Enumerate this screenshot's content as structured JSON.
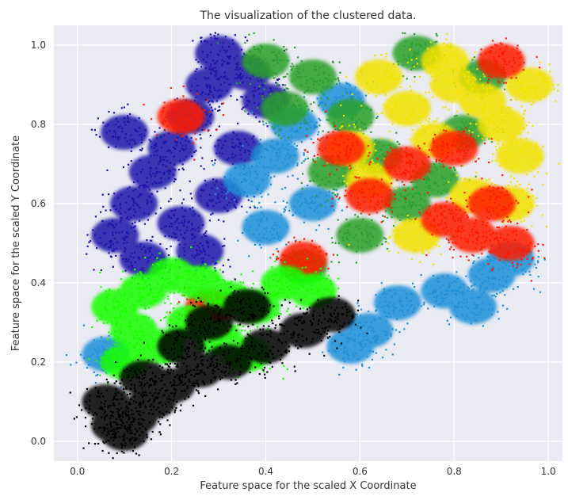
{
  "chart_data": {
    "type": "scatter",
    "title": "The visualization of the clustered data.",
    "xlabel": "Feature space for the scaled X Coordinate",
    "ylabel": "Feature space for the scaled Y Coordinate",
    "xlim": [
      -0.05,
      1.03
    ],
    "ylim": [
      -0.05,
      1.05
    ],
    "xticks": [
      "0.0",
      "0.2",
      "0.4",
      "0.6",
      "0.8",
      "1.0"
    ],
    "yticks": [
      "0.0",
      "0.2",
      "0.4",
      "0.6",
      "0.8",
      "1.0"
    ],
    "grid": true,
    "legend": "none",
    "colors": {
      "background": "#eaeaf2",
      "grid": "#ffffff",
      "clusters": [
        "#1f14a8",
        "#1e90d8",
        "#2ca02c",
        "#f2e200",
        "#ff1a00",
        "#19ff00",
        "#000000"
      ]
    },
    "series": [
      {
        "color": "#1f14a8",
        "points": [
          [
            0.08,
            0.52
          ],
          [
            0.12,
            0.6
          ],
          [
            0.16,
            0.68
          ],
          [
            0.2,
            0.74
          ],
          [
            0.24,
            0.82
          ],
          [
            0.28,
            0.9
          ],
          [
            0.3,
            0.98
          ],
          [
            0.36,
            0.93
          ],
          [
            0.4,
            0.86
          ],
          [
            0.14,
            0.46
          ],
          [
            0.22,
            0.55
          ],
          [
            0.3,
            0.62
          ],
          [
            0.34,
            0.74
          ],
          [
            0.1,
            0.78
          ],
          [
            0.26,
            0.48
          ]
        ]
      },
      {
        "color": "#1e90d8",
        "points": [
          [
            0.36,
            0.66
          ],
          [
            0.42,
            0.72
          ],
          [
            0.46,
            0.8
          ],
          [
            0.5,
            0.6
          ],
          [
            0.4,
            0.54
          ],
          [
            0.56,
            0.86
          ],
          [
            0.62,
            0.28
          ],
          [
            0.68,
            0.35
          ],
          [
            0.78,
            0.38
          ],
          [
            0.88,
            0.42
          ],
          [
            0.92,
            0.46
          ],
          [
            0.06,
            0.22
          ],
          [
            0.84,
            0.34
          ],
          [
            0.58,
            0.24
          ]
        ]
      },
      {
        "color": "#2ca02c",
        "points": [
          [
            0.4,
            0.96
          ],
          [
            0.5,
            0.92
          ],
          [
            0.58,
            0.82
          ],
          [
            0.64,
            0.72
          ],
          [
            0.6,
            0.52
          ],
          [
            0.7,
            0.6
          ],
          [
            0.76,
            0.66
          ],
          [
            0.82,
            0.78
          ],
          [
            0.86,
            0.92
          ],
          [
            0.48,
            0.44
          ],
          [
            0.54,
            0.68
          ],
          [
            0.72,
            0.98
          ],
          [
            0.44,
            0.84
          ]
        ]
      },
      {
        "color": "#f2e200",
        "points": [
          [
            0.64,
            0.92
          ],
          [
            0.7,
            0.84
          ],
          [
            0.76,
            0.76
          ],
          [
            0.8,
            0.9
          ],
          [
            0.86,
            0.86
          ],
          [
            0.9,
            0.8
          ],
          [
            0.94,
            0.72
          ],
          [
            0.96,
            0.9
          ],
          [
            0.84,
            0.62
          ],
          [
            0.62,
            0.66
          ],
          [
            0.72,
            0.52
          ],
          [
            0.92,
            0.6
          ],
          [
            0.78,
            0.96
          ],
          [
            0.58,
            0.74
          ]
        ]
      },
      {
        "color": "#ff1a00",
        "points": [
          [
            0.78,
            0.56
          ],
          [
            0.84,
            0.52
          ],
          [
            0.88,
            0.6
          ],
          [
            0.8,
            0.74
          ],
          [
            0.7,
            0.7
          ],
          [
            0.62,
            0.62
          ],
          [
            0.9,
            0.96
          ],
          [
            0.22,
            0.82
          ],
          [
            0.28,
            0.34
          ],
          [
            0.48,
            0.46
          ],
          [
            0.56,
            0.74
          ],
          [
            0.92,
            0.5
          ]
        ]
      },
      {
        "color": "#19ff00",
        "points": [
          [
            0.08,
            0.34
          ],
          [
            0.14,
            0.38
          ],
          [
            0.2,
            0.42
          ],
          [
            0.26,
            0.4
          ],
          [
            0.32,
            0.36
          ],
          [
            0.38,
            0.34
          ],
          [
            0.44,
            0.4
          ],
          [
            0.5,
            0.38
          ],
          [
            0.12,
            0.28
          ],
          [
            0.18,
            0.24
          ],
          [
            0.24,
            0.3
          ],
          [
            0.3,
            0.26
          ],
          [
            0.36,
            0.22
          ],
          [
            0.1,
            0.2
          ]
        ]
      },
      {
        "color": "#000000",
        "points": [
          [
            0.06,
            0.1
          ],
          [
            0.08,
            0.04
          ],
          [
            0.1,
            0.02
          ],
          [
            0.12,
            0.06
          ],
          [
            0.16,
            0.1
          ],
          [
            0.2,
            0.14
          ],
          [
            0.26,
            0.18
          ],
          [
            0.32,
            0.2
          ],
          [
            0.4,
            0.24
          ],
          [
            0.48,
            0.28
          ],
          [
            0.54,
            0.32
          ],
          [
            0.14,
            0.16
          ],
          [
            0.22,
            0.24
          ],
          [
            0.28,
            0.3
          ],
          [
            0.36,
            0.34
          ]
        ]
      }
    ]
  }
}
